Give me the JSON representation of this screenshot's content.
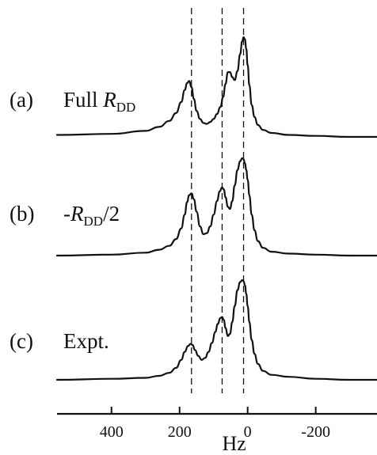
{
  "chart_data": {
    "type": "line",
    "xlabel": "Hz",
    "xlim": [
      560,
      -380
    ],
    "x_reversed": true,
    "x_ticks": [
      400,
      200,
      0,
      -200
    ],
    "x_tick_labels": [
      "400",
      "200",
      "0",
      "-200"
    ],
    "reference_lines_hz": [
      165,
      75,
      12
    ],
    "reference_line_style": "dashed",
    "grid": false,
    "legend": "none",
    "panels": [
      {
        "tag": "(a)",
        "label_parts": [
          "Full ",
          "R",
          "DD",
          ""
        ],
        "series": {
          "x": [
            560,
            400,
            300,
            260,
            230,
            210,
            195,
            185,
            178,
            172,
            165,
            158,
            150,
            140,
            130,
            120,
            110,
            100,
            90,
            80,
            72,
            65,
            58,
            52,
            45,
            38,
            30,
            22,
            16,
            12,
            8,
            4,
            0,
            -5,
            -12,
            -20,
            -30,
            -45,
            -70,
            -120,
            -200,
            -300,
            -380
          ],
          "y": [
            0.02,
            0.03,
            0.06,
            0.1,
            0.16,
            0.24,
            0.35,
            0.47,
            0.54,
            0.56,
            0.5,
            0.38,
            0.26,
            0.18,
            0.14,
            0.13,
            0.15,
            0.18,
            0.23,
            0.3,
            0.4,
            0.53,
            0.65,
            0.65,
            0.6,
            0.57,
            0.66,
            0.83,
            0.96,
            1.0,
            0.98,
            0.88,
            0.72,
            0.52,
            0.32,
            0.2,
            0.12,
            0.07,
            0.04,
            0.02,
            0.01,
            0.0,
            0.0
          ]
        }
      },
      {
        "tag": "(b)",
        "label_parts": [
          "-",
          "R",
          "DD",
          "/2"
        ],
        "series": {
          "x": [
            560,
            400,
            300,
            260,
            230,
            210,
            195,
            185,
            178,
            172,
            165,
            158,
            150,
            140,
            130,
            120,
            110,
            100,
            90,
            82,
            75,
            70,
            65,
            58,
            52,
            45,
            38,
            30,
            22,
            16,
            12,
            8,
            4,
            0,
            -5,
            -12,
            -20,
            -30,
            -45,
            -70,
            -120,
            -200,
            -300,
            -380
          ],
          "y": [
            0.0,
            0.01,
            0.03,
            0.06,
            0.1,
            0.17,
            0.28,
            0.42,
            0.55,
            0.62,
            0.64,
            0.58,
            0.45,
            0.3,
            0.22,
            0.23,
            0.3,
            0.42,
            0.56,
            0.66,
            0.7,
            0.68,
            0.6,
            0.5,
            0.48,
            0.56,
            0.72,
            0.88,
            0.97,
            1.0,
            0.99,
            0.95,
            0.88,
            0.78,
            0.62,
            0.42,
            0.26,
            0.15,
            0.08,
            0.04,
            0.02,
            0.01,
            0.0,
            0.0
          ]
        }
      },
      {
        "tag": "(c)",
        "label_parts": [
          "Expt.",
          "",
          "",
          ""
        ],
        "series": {
          "x": [
            560,
            400,
            300,
            260,
            230,
            210,
            195,
            185,
            175,
            168,
            162,
            155,
            145,
            135,
            125,
            115,
            105,
            95,
            88,
            80,
            75,
            70,
            65,
            58,
            52,
            45,
            38,
            30,
            22,
            16,
            12,
            8,
            4,
            0,
            -5,
            -12,
            -20,
            -30,
            -45,
            -70,
            -120,
            -200,
            -300,
            -380
          ],
          "y": [
            0.0,
            0.01,
            0.02,
            0.04,
            0.07,
            0.12,
            0.2,
            0.28,
            0.34,
            0.36,
            0.35,
            0.3,
            0.24,
            0.2,
            0.22,
            0.28,
            0.37,
            0.48,
            0.56,
            0.62,
            0.63,
            0.6,
            0.52,
            0.44,
            0.46,
            0.58,
            0.74,
            0.9,
            0.98,
            1.0,
            0.99,
            0.95,
            0.86,
            0.74,
            0.58,
            0.4,
            0.26,
            0.16,
            0.09,
            0.05,
            0.03,
            0.01,
            0.0,
            0.0
          ]
        }
      }
    ]
  }
}
